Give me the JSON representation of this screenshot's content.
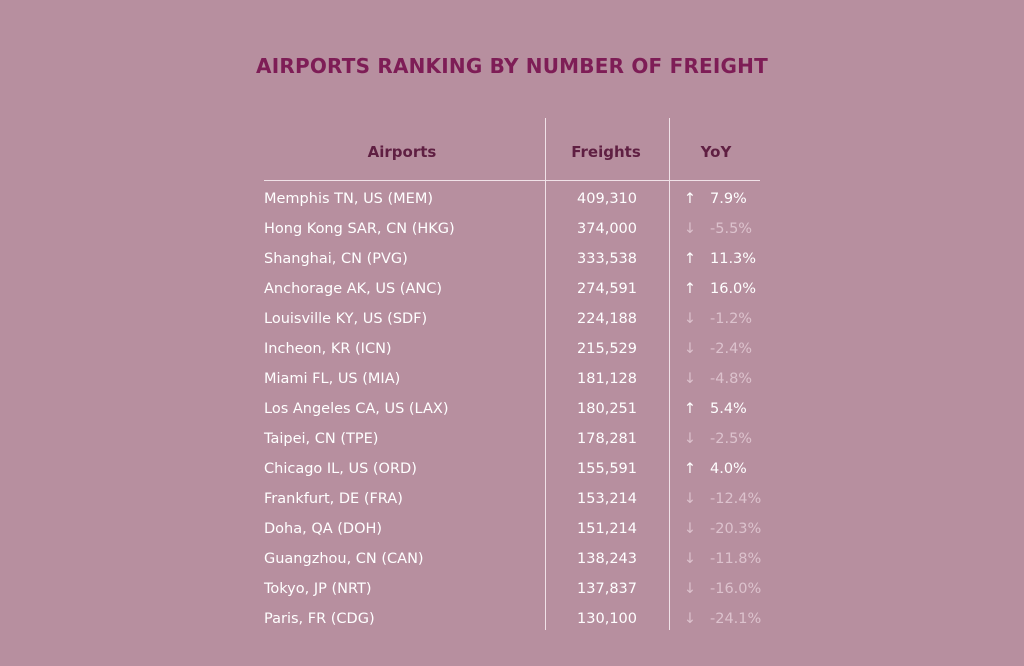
{
  "title": "AIRPORTS RANKING BY NUMBER OF FREIGHT",
  "headers": {
    "airports": "Airports",
    "freights": "Freights",
    "yoy": "YoY"
  },
  "colors": {
    "background": "#b78f9f",
    "title": "#7e1d56",
    "header": "#5f1f42",
    "up": "#ffffff",
    "down": "#dcc2cd"
  },
  "chart_data": {
    "type": "table",
    "title": "AIRPORTS RANKING BY NUMBER OF FREIGHT",
    "columns": [
      "Airports",
      "Freights",
      "YoY"
    ],
    "rows": [
      {
        "airport": "Memphis TN, US (MEM)",
        "freights": "409,310",
        "yoy": "7.9%",
        "direction": "up"
      },
      {
        "airport": "Hong Kong SAR, CN (HKG)",
        "freights": "374,000",
        "yoy": "-5.5%",
        "direction": "down"
      },
      {
        "airport": "Shanghai, CN (PVG)",
        "freights": "333,538",
        "yoy": "11.3%",
        "direction": "up"
      },
      {
        "airport": "Anchorage AK, US (ANC)",
        "freights": "274,591",
        "yoy": "16.0%",
        "direction": "up"
      },
      {
        "airport": "Louisville KY, US (SDF)",
        "freights": "224,188",
        "yoy": "-1.2%",
        "direction": "down"
      },
      {
        "airport": "Incheon, KR (ICN)",
        "freights": "215,529",
        "yoy": "-2.4%",
        "direction": "down"
      },
      {
        "airport": "Miami FL, US (MIA)",
        "freights": "181,128",
        "yoy": "-4.8%",
        "direction": "down"
      },
      {
        "airport": "Los Angeles CA, US (LAX)",
        "freights": "180,251",
        "yoy": "5.4%",
        "direction": "up"
      },
      {
        "airport": "Taipei, CN (TPE)",
        "freights": "178,281",
        "yoy": "-2.5%",
        "direction": "down"
      },
      {
        "airport": "Chicago IL, US (ORD)",
        "freights": "155,591",
        "yoy": "4.0%",
        "direction": "up"
      },
      {
        "airport": "Frankfurt, DE (FRA)",
        "freights": "153,214",
        "yoy": "-12.4%",
        "direction": "down"
      },
      {
        "airport": "Doha, QA (DOH)",
        "freights": "151,214",
        "yoy": "-20.3%",
        "direction": "down"
      },
      {
        "airport": "Guangzhou, CN (CAN)",
        "freights": "138,243",
        "yoy": "-11.8%",
        "direction": "down"
      },
      {
        "airport": "Tokyo, JP (NRT)",
        "freights": "137,837",
        "yoy": "-16.0%",
        "direction": "down"
      },
      {
        "airport": "Paris, FR (CDG)",
        "freights": "130,100",
        "yoy": "-24.1%",
        "direction": "down"
      }
    ]
  }
}
